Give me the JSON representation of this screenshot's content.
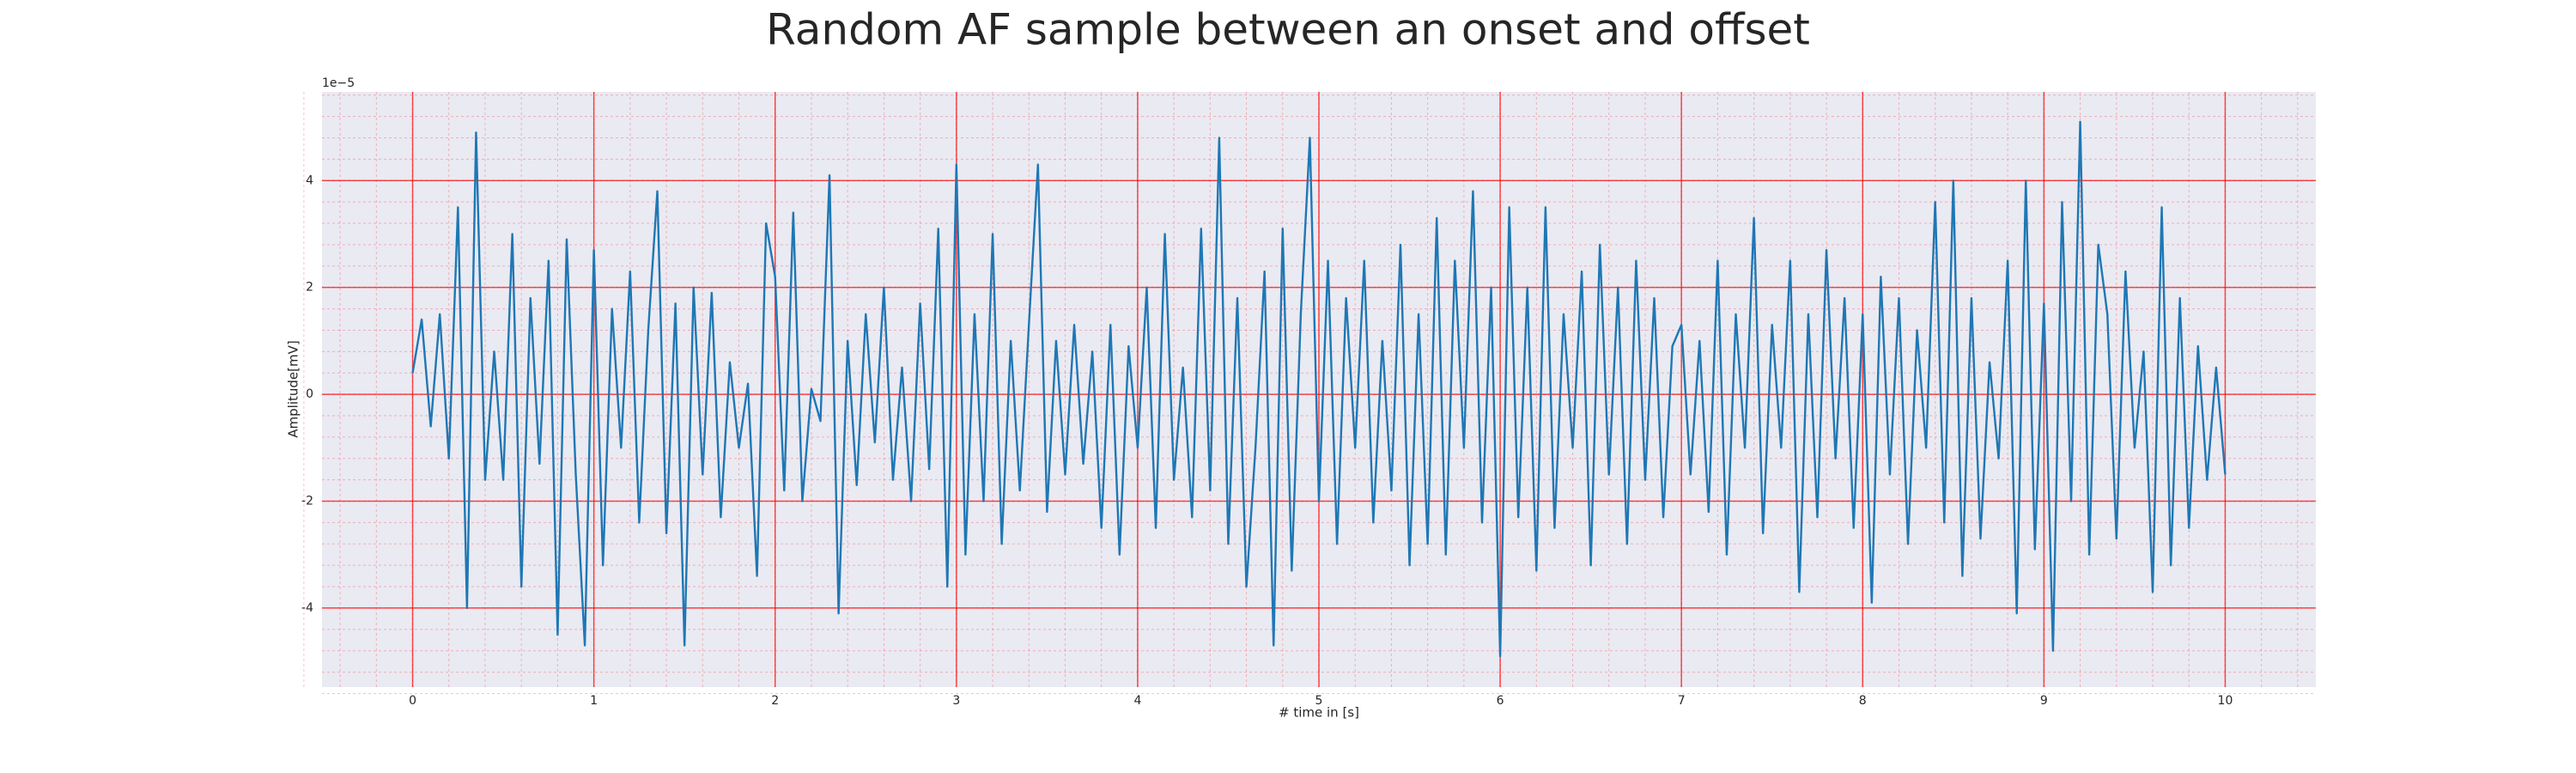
{
  "chart_data": {
    "type": "line",
    "title": "Random AF sample between an onset and offset",
    "x_label": "# time in [s]",
    "y_label": "Amplitude[mV]",
    "y_offset_label": "1e−5",
    "xlim": [
      -0.5,
      10.5
    ],
    "ylim": [
      -5.48,
      5.66
    ],
    "xticks": [
      0,
      1,
      2,
      3,
      4,
      5,
      6,
      7,
      8,
      9,
      10
    ],
    "yticks": [
      -4,
      -2,
      0,
      2,
      4
    ],
    "grid": true,
    "minor_grid": true,
    "grid_color": "#ff0000",
    "background": "#eaeaf2",
    "series": [
      {
        "color": "#1f77b4",
        "x": [
          0,
          0.05,
          0.1,
          0.15,
          0.2,
          0.25,
          0.3,
          0.35,
          0.4,
          0.45,
          0.5,
          0.55,
          0.6,
          0.65,
          0.7,
          0.75,
          0.8,
          0.85,
          0.9,
          0.95,
          1,
          1.05,
          1.1,
          1.15,
          1.2,
          1.25,
          1.3,
          1.35,
          1.4,
          1.45,
          1.5,
          1.55,
          1.6,
          1.65,
          1.7,
          1.75,
          1.8,
          1.85,
          1.9,
          1.95,
          2,
          2.05,
          2.1,
          2.15,
          2.2,
          2.25,
          2.3,
          2.35,
          2.4,
          2.45,
          2.5,
          2.55,
          2.6,
          2.65,
          2.7,
          2.75,
          2.8,
          2.85,
          2.9,
          2.95,
          3,
          3.05,
          3.1,
          3.15,
          3.2,
          3.25,
          3.3,
          3.35,
          3.4,
          3.45,
          3.5,
          3.55,
          3.6,
          3.65,
          3.7,
          3.75,
          3.8,
          3.85,
          3.9,
          3.95,
          4,
          4.05,
          4.1,
          4.15,
          4.2,
          4.25,
          4.3,
          4.35,
          4.4,
          4.45,
          4.5,
          4.55,
          4.6,
          4.65,
          4.7,
          4.75,
          4.8,
          4.85,
          4.9,
          4.95,
          5,
          5.05,
          5.1,
          5.15,
          5.2,
          5.25,
          5.3,
          5.35,
          5.4,
          5.45,
          5.5,
          5.55,
          5.6,
          5.65,
          5.7,
          5.75,
          5.8,
          5.85,
          5.9,
          5.95,
          6,
          6.05,
          6.1,
          6.15,
          6.2,
          6.25,
          6.3,
          6.35,
          6.4,
          6.45,
          6.5,
          6.55,
          6.6,
          6.65,
          6.7,
          6.75,
          6.8,
          6.85,
          6.9,
          6.95,
          7,
          7.05,
          7.1,
          7.15,
          7.2,
          7.25,
          7.3,
          7.35,
          7.4,
          7.45,
          7.5,
          7.55,
          7.6,
          7.65,
          7.7,
          7.75,
          7.8,
          7.85,
          7.9,
          7.95,
          8,
          8.05,
          8.1,
          8.15,
          8.2,
          8.25,
          8.3,
          8.35,
          8.4,
          8.45,
          8.5,
          8.55,
          8.6,
          8.65,
          8.7,
          8.75,
          8.8,
          8.85,
          8.9,
          8.95,
          9,
          9.05,
          9.1,
          9.15,
          9.2,
          9.25,
          9.3,
          9.35,
          9.4,
          9.45,
          9.5,
          9.55,
          9.6,
          9.65,
          9.7,
          9.75,
          9.8,
          9.85,
          9.9,
          9.95,
          10
        ],
        "values": [
          0.4,
          1.4,
          -0.6,
          1.5,
          -1.2,
          3.5,
          -4.0,
          4.9,
          -1.6,
          0.8,
          -1.6,
          3.0,
          -3.6,
          1.8,
          -1.3,
          2.5,
          -4.5,
          2.9,
          -1.5,
          -4.7,
          2.7,
          -3.2,
          1.6,
          -1.0,
          2.3,
          -2.4,
          1.2,
          3.8,
          -2.6,
          1.7,
          -4.7,
          2.0,
          -1.5,
          1.9,
          -2.3,
          0.6,
          -1.0,
          0.2,
          -3.4,
          3.2,
          2.2,
          -1.8,
          3.4,
          -2.0,
          0.1,
          -0.5,
          4.1,
          -4.1,
          1.0,
          -1.7,
          1.5,
          -0.9,
          2.0,
          -1.6,
          0.5,
          -2.0,
          1.7,
          -1.4,
          3.1,
          -3.6,
          4.3,
          -3.0,
          1.5,
          -2.0,
          3.0,
          -2.8,
          1.0,
          -1.8,
          1.3,
          4.3,
          -2.2,
          1.0,
          -1.5,
          1.3,
          -1.3,
          0.8,
          -2.5,
          1.3,
          -3.0,
          0.9,
          -1.0,
          2.0,
          -2.5,
          3.0,
          -1.6,
          0.5,
          -2.3,
          3.1,
          -1.8,
          4.8,
          -2.8,
          1.8,
          -3.6,
          -1.0,
          2.3,
          -4.7,
          3.1,
          -3.3,
          1.5,
          4.8,
          -2.0,
          2.5,
          -2.8,
          1.8,
          -1.0,
          2.5,
          -2.4,
          1.0,
          -1.8,
          2.8,
          -3.2,
          1.5,
          -2.8,
          3.3,
          -3.0,
          2.5,
          -1.0,
          3.8,
          -2.4,
          2.0,
          -4.9,
          3.5,
          -2.3,
          2.0,
          -3.3,
          3.5,
          -2.5,
          1.5,
          -1.0,
          2.3,
          -3.2,
          2.8,
          -1.5,
          2.0,
          -2.8,
          2.5,
          -1.6,
          1.8,
          -2.3,
          0.9,
          1.3,
          -1.5,
          1.0,
          -2.2,
          2.5,
          -3.0,
          1.5,
          -1.0,
          3.3,
          -2.6,
          1.3,
          -1.0,
          2.5,
          -3.7,
          1.5,
          -2.3,
          2.7,
          -1.2,
          1.8,
          -2.5,
          1.5,
          -3.9,
          2.2,
          -1.5,
          1.8,
          -2.8,
          1.2,
          -1.0,
          3.6,
          -2.4,
          4.0,
          -3.4,
          1.8,
          -2.7,
          0.6,
          -1.2,
          2.5,
          -4.1,
          4.0,
          -2.9,
          1.7,
          -4.8,
          3.6,
          -2.0,
          5.1,
          -3.0,
          2.8,
          1.5,
          -2.7,
          2.3,
          -1.0,
          0.8,
          -3.7,
          3.5,
          -3.2,
          1.8,
          -2.5,
          0.9,
          -1.6,
          0.5,
          -1.5
        ]
      }
    ]
  }
}
